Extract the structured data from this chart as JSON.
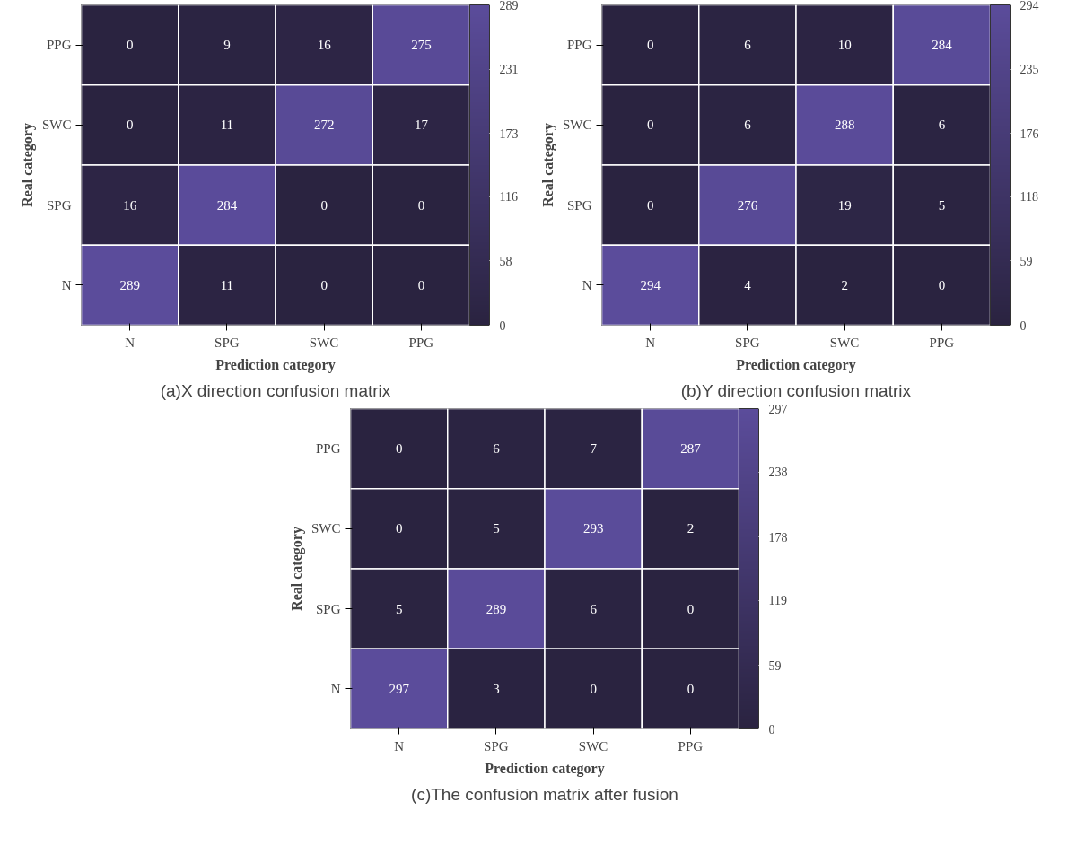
{
  "chart_data": [
    {
      "type": "heatmap",
      "title": "(a)X direction confusion matrix",
      "xlabel": "Prediction category",
      "ylabel": "Real category",
      "categories": [
        "N",
        "SPG",
        "SWC",
        "PPG"
      ],
      "y_categories": [
        "PPG",
        "SWC",
        "SPG",
        "N"
      ],
      "cells": [
        [
          0,
          9,
          16,
          275
        ],
        [
          0,
          11,
          272,
          17
        ],
        [
          16,
          284,
          0,
          0
        ],
        [
          289,
          11,
          0,
          0
        ]
      ],
      "data_labels": true,
      "clim": [
        0,
        289
      ],
      "cticks": [
        0,
        58,
        116,
        173,
        231,
        289
      ]
    },
    {
      "type": "heatmap",
      "title": "(b)Y direction confusion matrix",
      "xlabel": "Prediction category",
      "ylabel": "Real category",
      "categories": [
        "N",
        "SPG",
        "SWC",
        "PPG"
      ],
      "y_categories": [
        "PPG",
        "SWC",
        "SPG",
        "N"
      ],
      "cells": [
        [
          0,
          6,
          10,
          284
        ],
        [
          0,
          6,
          288,
          6
        ],
        [
          0,
          276,
          19,
          5
        ],
        [
          294,
          4,
          2,
          0
        ]
      ],
      "data_labels": true,
      "clim": [
        0,
        294
      ],
      "cticks": [
        0,
        59,
        118,
        176,
        235,
        294
      ]
    },
    {
      "type": "heatmap",
      "title": "(c)The confusion matrix after fusion",
      "xlabel": "Prediction category",
      "ylabel": "Real category",
      "categories": [
        "N",
        "SPG",
        "SWC",
        "PPG"
      ],
      "y_categories": [
        "PPG",
        "SWC",
        "SPG",
        "N"
      ],
      "cells": [
        [
          0,
          6,
          7,
          287
        ],
        [
          0,
          5,
          293,
          2
        ],
        [
          5,
          289,
          6,
          0
        ],
        [
          297,
          3,
          0,
          0
        ]
      ],
      "data_labels": true,
      "clim": [
        0,
        297
      ],
      "cticks": [
        0,
        59,
        119,
        178,
        238,
        297
      ]
    }
  ]
}
